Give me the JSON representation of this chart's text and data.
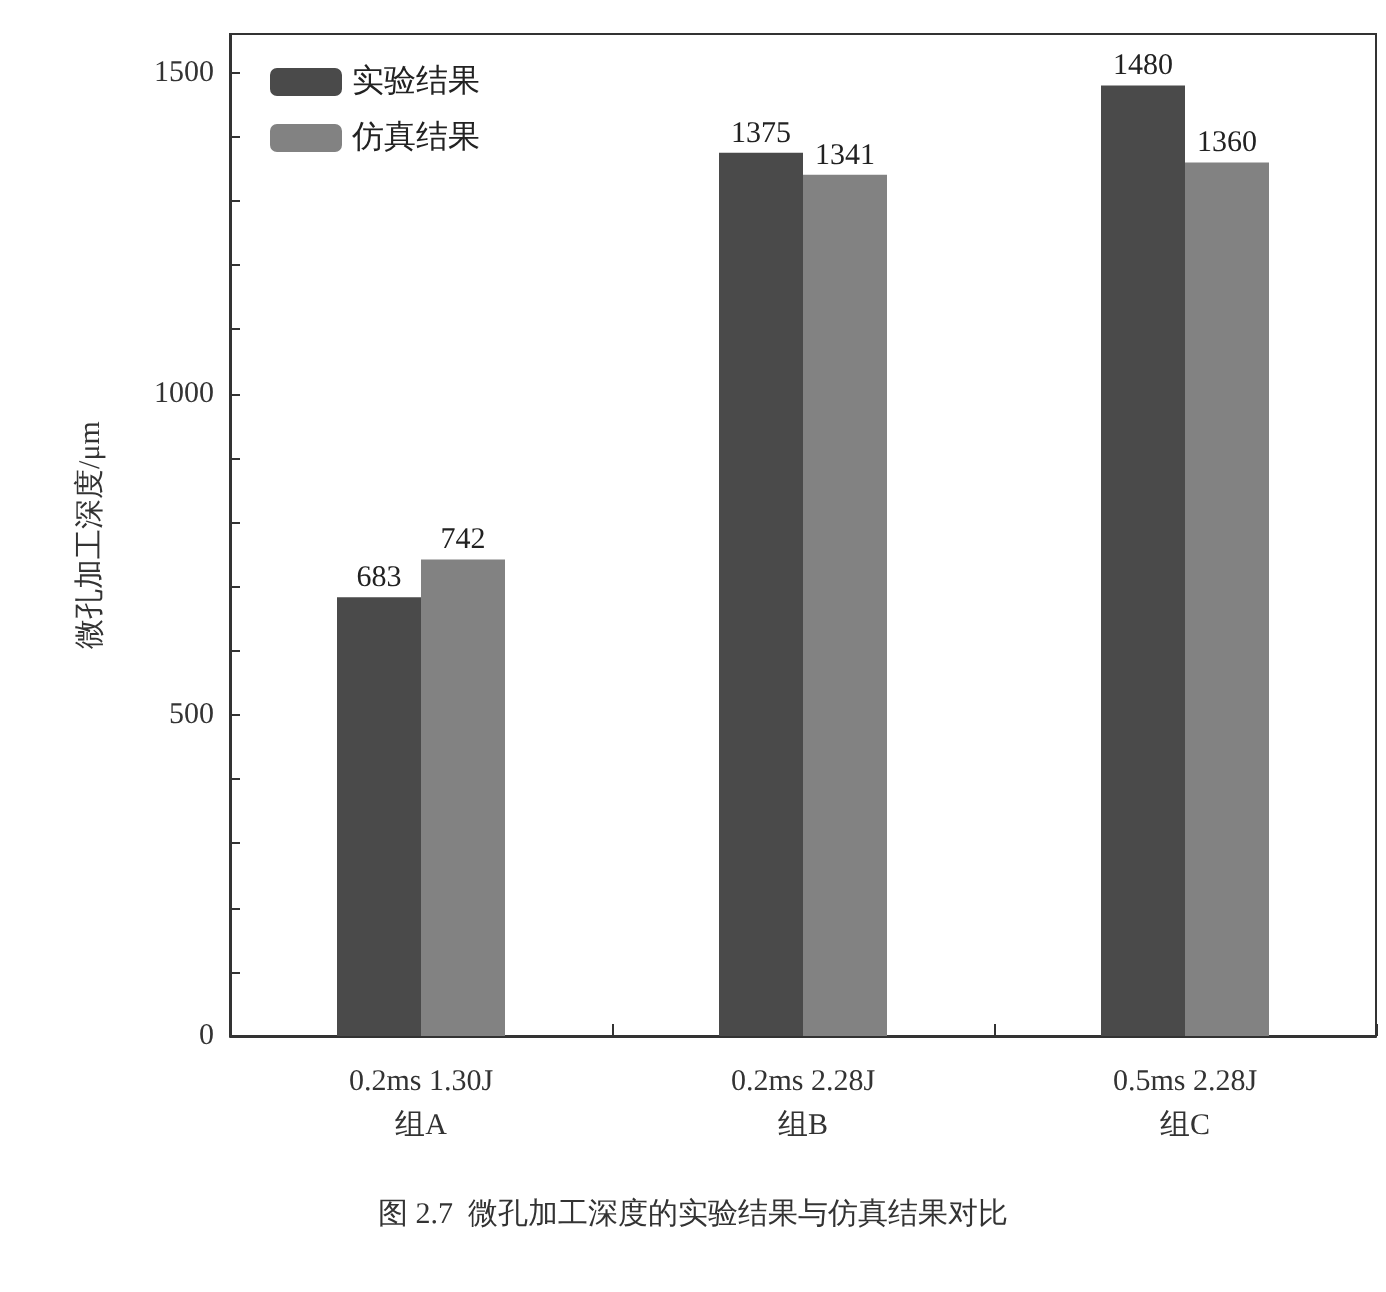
{
  "chart_data": {
    "type": "bar",
    "ylabel": "微孔加工深度/μm",
    "categories": [
      "0.2ms 1.30J\n组A",
      "0.2ms 2.28J\n组B",
      "0.5ms 2.28J\n组C"
    ],
    "series": [
      {
        "name": "实验结果",
        "color": "#4a4a4a",
        "values": [
          683,
          1375,
          1480
        ]
      },
      {
        "name": "仿真结果",
        "color": "#828282",
        "values": [
          742,
          1341,
          1360
        ]
      }
    ],
    "ylim": [
      0,
      1560
    ],
    "yticks": [
      0,
      {
        "value": 100,
        "label": null
      },
      {
        "value": 200,
        "label": null
      },
      {
        "value": 300,
        "label": null
      },
      {
        "value": 400,
        "label": null
      },
      500,
      {
        "value": 600,
        "label": null
      },
      {
        "value": 700,
        "label": null
      },
      {
        "value": 800,
        "label": null
      },
      {
        "value": 900,
        "label": null
      },
      1000,
      {
        "value": 1100,
        "label": null
      },
      {
        "value": 1200,
        "label": null
      },
      {
        "value": 1300,
        "label": null
      },
      {
        "value": 1400,
        "label": null
      },
      1500
    ],
    "data_labels": true,
    "grid": false,
    "legend": "top left",
    "annotations": [
      "图 2.7  微孔加工深度的实验结果与仿真结果对比"
    ]
  }
}
